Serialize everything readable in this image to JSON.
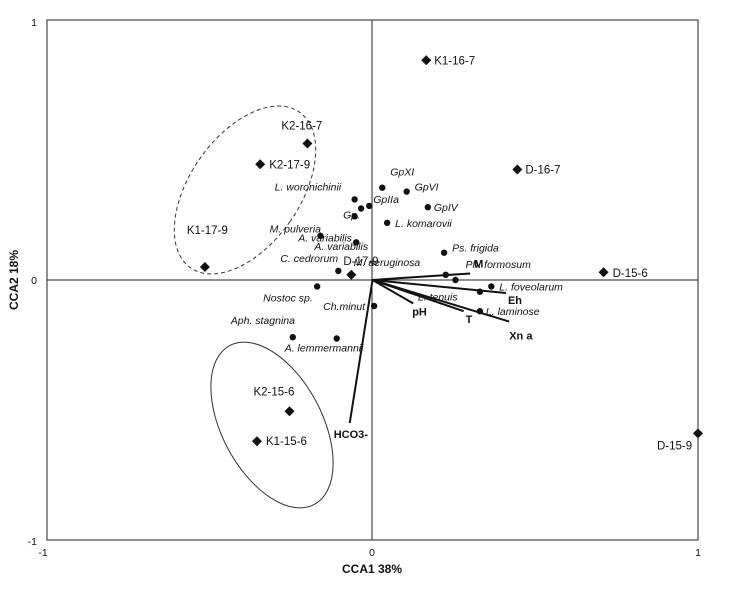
{
  "chart_data": {
    "type": "scatter",
    "xlabel": "CCA1 38%",
    "ylabel": "CCA2 18%",
    "xlim": [
      -1,
      1
    ],
    "ylim": [
      -1,
      1
    ],
    "x_ticks": [
      "-1",
      "0",
      "1"
    ],
    "y_ticks": [
      "-1",
      "0",
      "1"
    ],
    "colors": {
      "ink": "#111111",
      "frame": "#222222"
    },
    "sites": [
      {
        "label": "K1-16-7",
        "x": 0.165,
        "y": 0.845
      },
      {
        "label": "K2-16-7",
        "x": -0.2,
        "y": 0.525
      },
      {
        "label": "K2-17-9",
        "x": -0.345,
        "y": 0.445
      },
      {
        "label": "D-16-7",
        "x": 0.445,
        "y": 0.425
      },
      {
        "label": "K1-17-9",
        "x": -0.515,
        "y": 0.05
      },
      {
        "label": "D-17-9",
        "x": -0.065,
        "y": 0.02
      },
      {
        "label": "D-15-6",
        "x": 0.71,
        "y": 0.03
      },
      {
        "label": "K2-15-6",
        "x": -0.255,
        "y": -0.505
      },
      {
        "label": "K1-15-6",
        "x": -0.355,
        "y": -0.62
      },
      {
        "label": "D-15-9",
        "x": 1.0,
        "y": -0.59
      }
    ],
    "species": [
      {
        "label": "GpXI",
        "x": 0.03,
        "y": 0.355
      },
      {
        "label": "GpVI",
        "x": 0.105,
        "y": 0.34
      },
      {
        "label": "L. woronichinii",
        "x": -0.055,
        "y": 0.31
      },
      {
        "label": "GpIIa",
        "x": -0.01,
        "y": 0.285
      },
      {
        "label": "GpIV",
        "x": 0.17,
        "y": 0.28
      },
      {
        "label": "Gp.",
        "x": -0.035,
        "y": 0.275
      },
      {
        "label": "L. komarovii",
        "x": 0.045,
        "y": 0.22
      },
      {
        "label": "M. pulveria",
        "x": -0.055,
        "y": 0.245
      },
      {
        "label": "A. variabilis",
        "x": -0.16,
        "y": 0.17
      },
      {
        "label": "A. variabilis",
        "x": -0.05,
        "y": 0.145
      },
      {
        "label": "Ps. frigida",
        "x": 0.22,
        "y": 0.105
      },
      {
        "label": "C. cedrorum",
        "x": -0.105,
        "y": 0.035
      },
      {
        "label": "M. aeruginosa",
        "x": 0.225,
        "y": 0.02
      },
      {
        "label": "Ph. formosum",
        "x": 0.255,
        "y": 0.0
      },
      {
        "label": "L. foveolarum",
        "x": 0.365,
        "y": -0.025
      },
      {
        "label": "Nostoc sp.",
        "x": -0.17,
        "y": -0.025
      },
      {
        "label": "L. tenuis",
        "x": 0.33,
        "y": -0.045
      },
      {
        "label": "Ch.minut",
        "x": 0.005,
        "y": -0.1
      },
      {
        "label": "L. laminose",
        "x": 0.33,
        "y": -0.12
      },
      {
        "label": "Aph. stagnina",
        "x": -0.245,
        "y": -0.22
      },
      {
        "label": "A. lemmermannii",
        "x": -0.11,
        "y": -0.225
      }
    ],
    "vectors": [
      {
        "label": "M",
        "x": 0.3,
        "y": 0.025
      },
      {
        "label": "Eh",
        "x": 0.41,
        "y": -0.05
      },
      {
        "label": "Xn a",
        "x": 0.42,
        "y": -0.16
      },
      {
        "label": "T",
        "x": 0.28,
        "y": -0.12
      },
      {
        "label": "pH",
        "x": 0.125,
        "y": -0.09
      },
      {
        "label": "HCO3-",
        "x": -0.07,
        "y": -0.55
      }
    ]
  }
}
